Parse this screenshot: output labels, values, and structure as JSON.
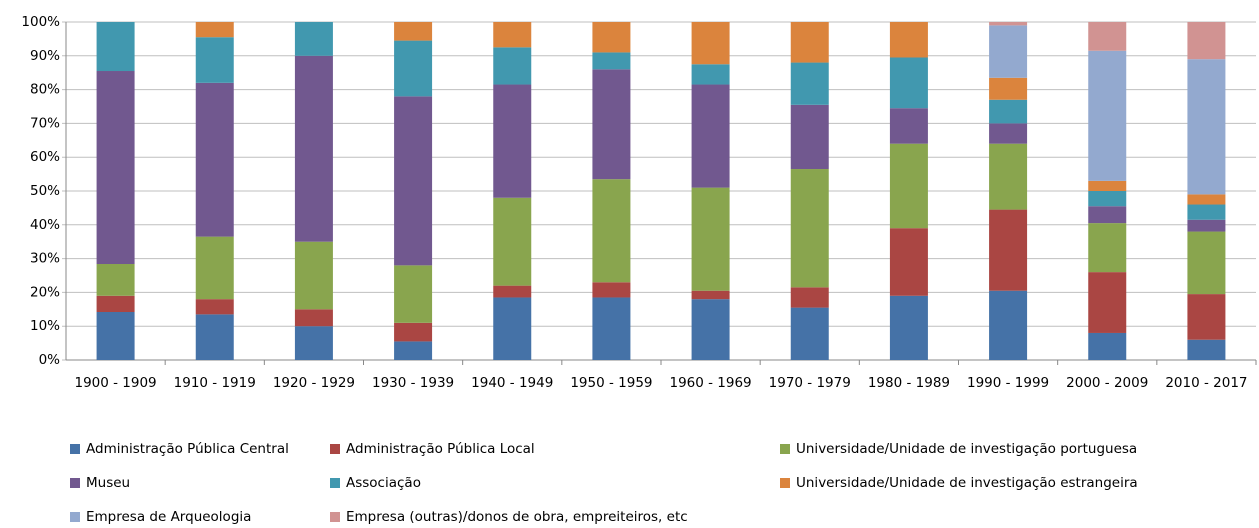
{
  "chart_data": {
    "type": "stacked_bar",
    "categories": [
      "1900 - 1909",
      "1910 - 1919",
      "1920 - 1929",
      "1930 - 1939",
      "1940 - 1949",
      "1950 - 1959",
      "1960 - 1969",
      "1970 - 1979",
      "1980 - 1989",
      "1990 - 1999",
      "2000 - 2009",
      "2010 - 2017"
    ],
    "series": [
      {
        "name": "Administração Pública Central",
        "color": "#4572a7",
        "values": [
          14.2,
          13.5,
          10,
          5.5,
          18.5,
          18.5,
          18,
          15.5,
          19,
          20.5,
          8,
          6
        ]
      },
      {
        "name": "Administração Pública Local",
        "color": "#aa4643",
        "values": [
          4.8,
          4.5,
          5,
          5.5,
          3.5,
          4.5,
          2.5,
          6,
          20,
          24,
          18,
          13.5
        ]
      },
      {
        "name": "Universidade/Unidade de investigação portuguesa",
        "color": "#89a54e",
        "values": [
          9.4,
          18.5,
          20,
          17,
          26,
          30.5,
          30.5,
          35,
          25,
          19.5,
          14.5,
          18.5
        ]
      },
      {
        "name": "Museu",
        "color": "#71588f",
        "values": [
          57.1,
          45.5,
          55,
          50,
          33.5,
          32.5,
          30.5,
          19,
          10.5,
          6,
          5,
          3.5
        ]
      },
      {
        "name": "Associação",
        "color": "#4198af",
        "values": [
          14.5,
          13.5,
          10,
          16.5,
          11,
          5,
          6,
          12.5,
          15,
          7,
          4.5,
          4.5
        ]
      },
      {
        "name": "Universidade/Unidade de investigação estrangeira",
        "color": "#db843d",
        "values": [
          0,
          4.5,
          0,
          5.5,
          7.5,
          9,
          12.5,
          12,
          10.5,
          6.5,
          3,
          3
        ]
      },
      {
        "name": "Empresa de Arqueologia",
        "color": "#93a9cf",
        "values": [
          0,
          0,
          0,
          0,
          0,
          0,
          0,
          0,
          0,
          15.5,
          38.5,
          40
        ]
      },
      {
        "name": "Empresa (outras)/donos de obra, empreiteiros, etc",
        "color": "#d19392",
        "values": [
          0,
          0,
          0,
          0,
          0,
          0,
          0,
          0,
          0,
          1,
          8.5,
          11
        ]
      }
    ],
    "ylim": [
      0,
      100
    ],
    "yticks": [
      {
        "value": 0,
        "label": "0%"
      },
      {
        "value": 10,
        "label": "10%"
      },
      {
        "value": 20,
        "label": "20%"
      },
      {
        "value": 30,
        "label": "30%"
      },
      {
        "value": 40,
        "label": "40%"
      },
      {
        "value": 50,
        "label": "50%"
      },
      {
        "value": 60,
        "label": "60%"
      },
      {
        "value": 70,
        "label": "70%"
      },
      {
        "value": 80,
        "label": "80%"
      },
      {
        "value": 90,
        "label": "90%"
      },
      {
        "value": 100,
        "label": "100%"
      }
    ],
    "grid": true,
    "legend": "bottom"
  }
}
